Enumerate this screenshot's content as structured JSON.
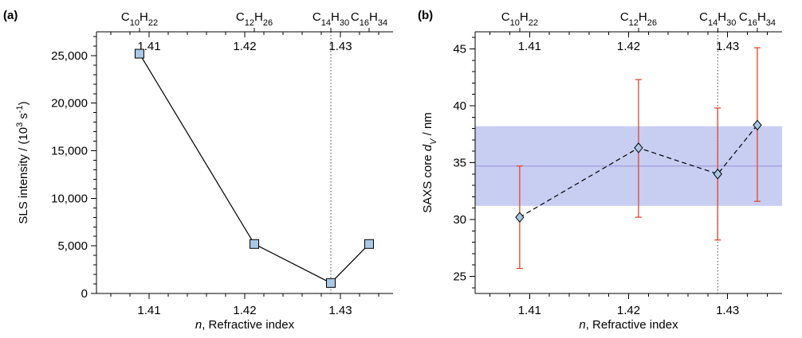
{
  "chart_data": [
    {
      "panel_label": "(a)",
      "type": "line",
      "xlabel_italic": "n",
      "xlabel": ", Refractive index",
      "ylabel": "SLS intensity / (10<sup>3</sup> s<sup>-1</sup>)",
      "xlim": [
        1.4045,
        1.4355
      ],
      "ylim": [
        0,
        27500
      ],
      "x_ticks": [
        "1.41",
        "1.42",
        "1.43"
      ],
      "x_tick_values": [
        1.41,
        1.42,
        1.43
      ],
      "y_ticks": [
        "0",
        "5,000",
        "10,000",
        "15,000",
        "20,000",
        "25,000"
      ],
      "y_tick_values": [
        0,
        5000,
        10000,
        15000,
        20000,
        25000
      ],
      "top_labels": [
        {
          "label": "C<sub>10</sub>H<sub>22</sub>",
          "x": 1.409
        },
        {
          "label": "C<sub>12</sub>H<sub>26</sub>",
          "x": 1.421
        },
        {
          "label": "C<sub>14</sub>H<sub>30</sub>",
          "x": 1.429
        },
        {
          "label": "C<sub>16</sub>H<sub>34</sub>",
          "x": 1.433
        }
      ],
      "top_tick_labels": [
        "1.41",
        "1.42",
        "1.43"
      ],
      "vline_x": 1.429,
      "series": [
        {
          "x": [
            1.409,
            1.421,
            1.429,
            1.433
          ],
          "y": [
            25200,
            5200,
            1100,
            5200
          ],
          "marker": "square",
          "line": "solid"
        }
      ],
      "grid": false
    },
    {
      "panel_label": "(b)",
      "type": "line",
      "xlabel_italic": "n",
      "xlabel": ", Refractive index",
      "ylabel": "SAXS core <tspan font-style='italic'>d</tspan><tspan font-style='italic' baseline-shift='sub' font-size='11'>V</tspan> / nm",
      "xlim": [
        1.4045,
        1.4355
      ],
      "ylim": [
        23.5,
        46.5
      ],
      "x_ticks": [
        "1.41",
        "1.42",
        "1.43"
      ],
      "x_tick_values": [
        1.41,
        1.42,
        1.43
      ],
      "y_ticks": [
        "25",
        "30",
        "35",
        "40",
        "45"
      ],
      "y_tick_values": [
        25,
        30,
        35,
        40,
        45
      ],
      "top_labels": [
        {
          "label": "C<sub>10</sub>H<sub>22</sub>",
          "x": 1.409
        },
        {
          "label": "C<sub>12</sub>H<sub>26</sub>",
          "x": 1.421
        },
        {
          "label": "C<sub>14</sub>H<sub>30</sub>",
          "x": 1.429
        },
        {
          "label": "C<sub>16</sub>H<sub>34</sub>",
          "x": 1.433
        }
      ],
      "top_tick_labels": [
        "1.41",
        "1.42",
        "1.43"
      ],
      "vline_x": 1.429,
      "band": {
        "mean": 34.7,
        "low": 31.2,
        "high": 38.2,
        "fill": "#c8cdf2",
        "line": "#9c9ad8"
      },
      "series": [
        {
          "x": [
            1.409,
            1.421,
            1.429,
            1.433
          ],
          "y": [
            30.2,
            36.3,
            34.0,
            38.3
          ],
          "err_low": [
            25.7,
            30.2,
            28.2,
            31.6
          ],
          "err_high": [
            34.7,
            42.3,
            39.8,
            45.1
          ],
          "marker": "diamond",
          "line": "dashed",
          "err_color": "#e8442a"
        }
      ],
      "grid": false
    }
  ],
  "colors": {
    "marker_fill": "#a9c8e3",
    "marker_stroke": "#000000",
    "error_bar": "#e8442a"
  }
}
